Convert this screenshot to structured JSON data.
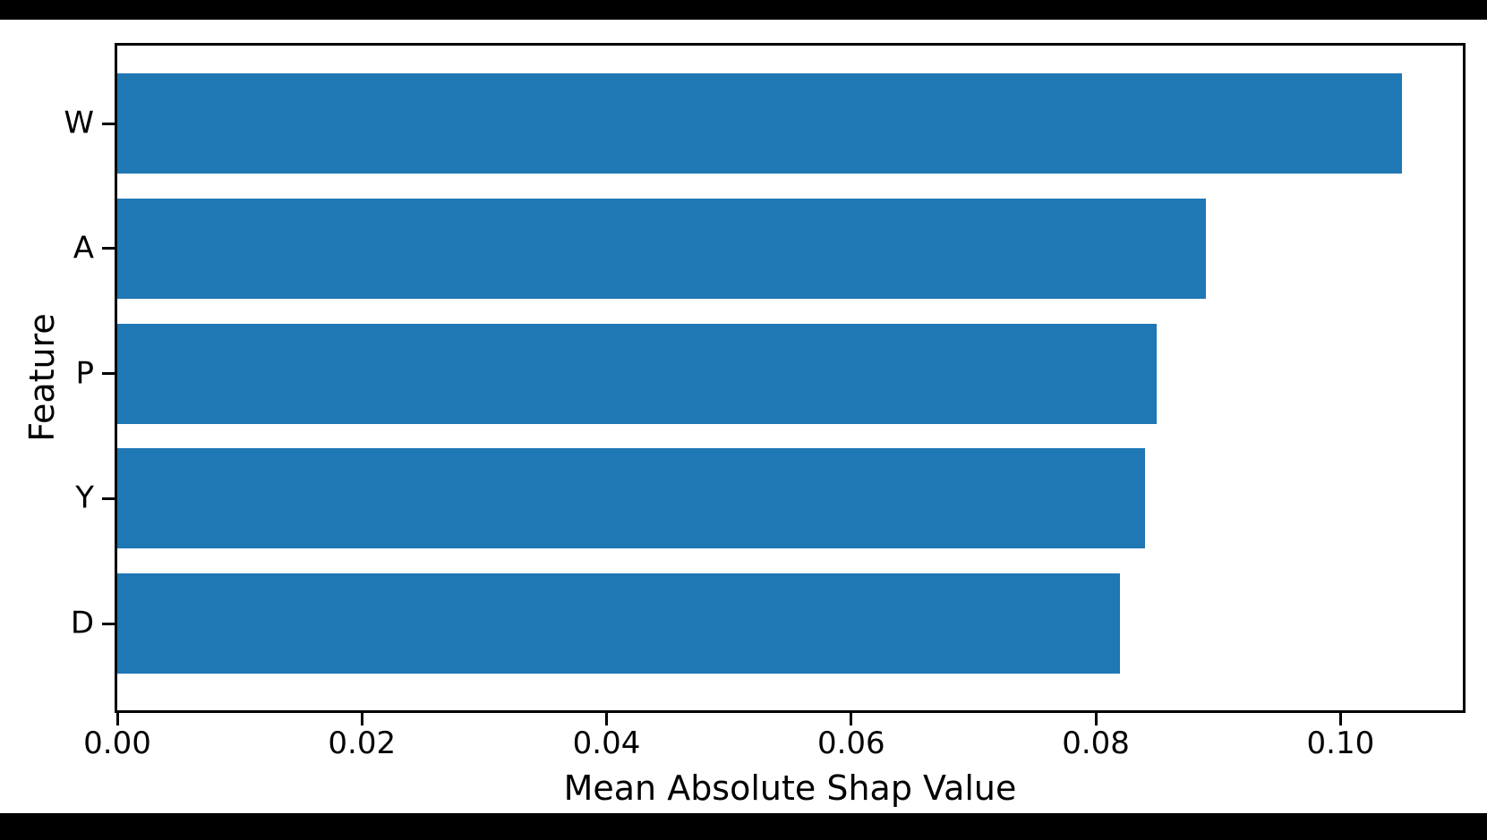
{
  "window": {
    "frame_color": "#000000",
    "figure_background": "#ffffff"
  },
  "chart_data": {
    "type": "bar",
    "orientation": "horizontal",
    "title": "",
    "xlabel": "Mean Absolute Shap Value",
    "ylabel": "Feature",
    "categories": [
      "W",
      "A",
      "P",
      "Y",
      "D"
    ],
    "values": [
      0.105,
      0.089,
      0.085,
      0.084,
      0.082
    ],
    "xlim": [
      0,
      0.11
    ],
    "x_ticks": [
      {
        "value": 0.0,
        "label": "0.00"
      },
      {
        "value": 0.02,
        "label": "0.02"
      },
      {
        "value": 0.04,
        "label": "0.04"
      },
      {
        "value": 0.06,
        "label": "0.06"
      },
      {
        "value": 0.08,
        "label": "0.08"
      },
      {
        "value": 0.1,
        "label": "0.10"
      }
    ],
    "grid": false,
    "legend": "none",
    "bar_color": "#1f77b4",
    "axis_color": "#000000"
  }
}
